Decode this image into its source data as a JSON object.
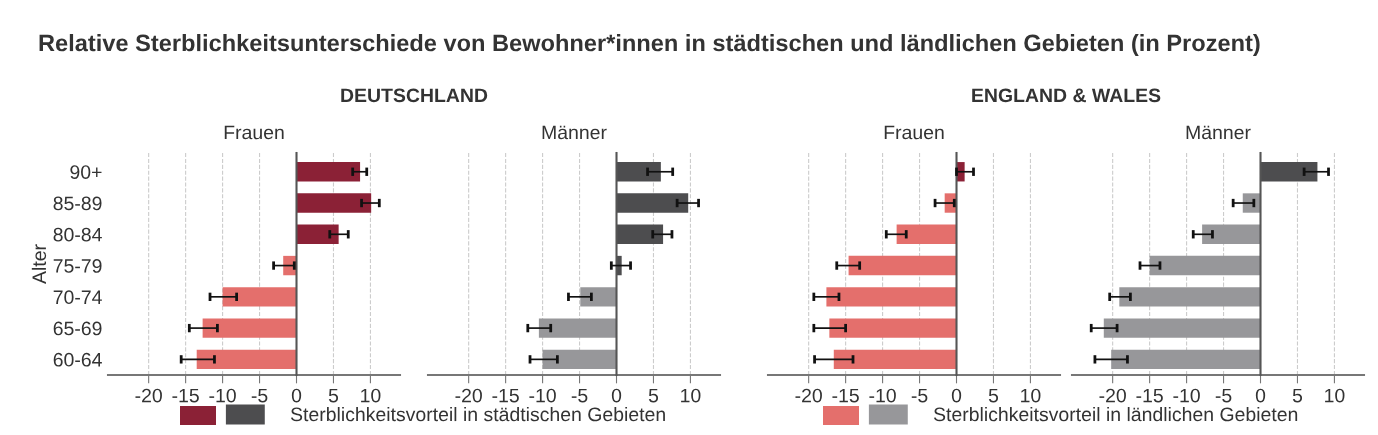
{
  "chart_data": [
    {
      "type": "bar",
      "orientation": "horizontal",
      "title": "Relative Sterblichkeitsunterschiede von Bewohner*innen in städtischen und ländlichen Gebieten (in Prozent)",
      "annotations": [
        "DEUTSCHLAND"
      ],
      "subtitle": "Frauen",
      "ylabel": "Alter",
      "categories": [
        "90+",
        "85-89",
        "80-84",
        "75-79",
        "70-74",
        "65-69",
        "60-64"
      ],
      "series": [
        {
          "color": "#8b2136",
          "values": [
            8.6,
            10.1,
            5.7,
            null,
            null,
            null,
            null
          ],
          "errors": [
            [
              7.6,
              9.5
            ],
            [
              8.8,
              11.2
            ],
            [
              4.5,
              7.0
            ],
            null,
            null,
            null,
            null
          ]
        },
        {
          "color": "#e46f6c",
          "values": [
            null,
            null,
            null,
            -1.8,
            -10.0,
            -12.7,
            -13.5
          ],
          "errors": [
            null,
            null,
            null,
            [
              -3.1,
              -0.3
            ],
            [
              -11.7,
              -8.1
            ],
            [
              -14.5,
              -10.7
            ],
            [
              -15.6,
              -11.1
            ]
          ]
        }
      ],
      "xlim": [
        -25.5,
        14
      ],
      "xticks": [
        -20,
        -15,
        -10,
        -5,
        0,
        5,
        10
      ],
      "grid": "x"
    },
    {
      "type": "bar",
      "orientation": "horizontal",
      "subtitle": "Männer",
      "categories": [
        null,
        null,
        null,
        null,
        null,
        null,
        null
      ],
      "series": [
        {
          "name": "Sterblichkeitsvorteil in städtischen Gebieten",
          "color": "#4d4d4f",
          "values": [
            6.0,
            9.7,
            6.3,
            0.7,
            null,
            null,
            null
          ],
          "errors": [
            [
              4.2,
              7.6
            ],
            [
              8.2,
              11.1
            ],
            [
              4.9,
              7.5
            ],
            [
              -0.7,
              1.9
            ],
            null,
            null,
            null
          ]
        },
        {
          "name": "Sterblichkeitsvorteil in ländlichen Gebieten",
          "color": "#97979a",
          "values": [
            null,
            null,
            null,
            null,
            -4.9,
            -10.5,
            -10.0
          ],
          "errors": [
            null,
            null,
            null,
            null,
            [
              -6.5,
              -3.4
            ],
            [
              -12.0,
              -8.9
            ],
            [
              -11.7,
              -8.0
            ]
          ]
        }
      ],
      "xlim": [
        -25.5,
        14
      ],
      "xticks": [
        -20,
        -15,
        -10,
        -5,
        0,
        5,
        10
      ],
      "grid": "x",
      "tick_labels": "x",
      "legend": "bottom"
    },
    {
      "type": "bar",
      "orientation": "horizontal",
      "annotations": [
        "ENGLAND & WALES"
      ],
      "subtitle": "Frauen",
      "categories": [
        null,
        null,
        null,
        null,
        null,
        null,
        null
      ],
      "series": [
        {
          "color": "#8b2136",
          "values": [
            1.1,
            null,
            null,
            null,
            null,
            null,
            null
          ],
          "errors": [
            [
              0.0,
              2.3
            ],
            null,
            null,
            null,
            null,
            null,
            null
          ]
        },
        {
          "color": "#e46f6c",
          "values": [
            null,
            -1.6,
            -8.1,
            -14.6,
            -17.6,
            -17.2,
            -16.6
          ],
          "errors": [
            null,
            [
              -2.9,
              -0.3
            ],
            [
              -9.5,
              -6.8
            ],
            [
              -16.2,
              -13.1
            ],
            [
              -19.3,
              -15.9
            ],
            [
              -19.3,
              -15.0
            ],
            [
              -19.2,
              -14.0
            ]
          ]
        }
      ],
      "xlim": [
        -25.5,
        14
      ],
      "xticks": [
        -20,
        -15,
        -10,
        -5,
        0,
        5,
        10
      ],
      "grid": "x",
      "tick_labels": "x"
    },
    {
      "type": "bar",
      "orientation": "horizontal",
      "subtitle": "Männer",
      "categories": [
        null,
        null,
        null,
        null,
        null,
        null,
        null
      ],
      "series": [
        {
          "color": "#4d4d4f",
          "values": [
            7.7,
            null,
            null,
            null,
            null,
            null,
            null
          ],
          "errors": [
            [
              5.9,
              9.2
            ],
            null,
            null,
            null,
            null,
            null,
            null
          ]
        },
        {
          "color": "#97979a",
          "values": [
            null,
            -2.4,
            -7.9,
            -15.0,
            -19.1,
            -21.2,
            -20.2
          ],
          "errors": [
            null,
            [
              -3.7,
              -0.9
            ],
            [
              -9.1,
              -6.5
            ],
            [
              -16.3,
              -13.6
            ],
            [
              -20.4,
              -17.6
            ],
            [
              -22.9,
              -19.4
            ],
            [
              -22.4,
              -18.0
            ]
          ]
        }
      ],
      "xlim": [
        -25.5,
        14
      ],
      "xticks": [
        -20,
        -15,
        -10,
        -5,
        0,
        5,
        10
      ],
      "grid": "x",
      "tick_labels": "x"
    }
  ]
}
